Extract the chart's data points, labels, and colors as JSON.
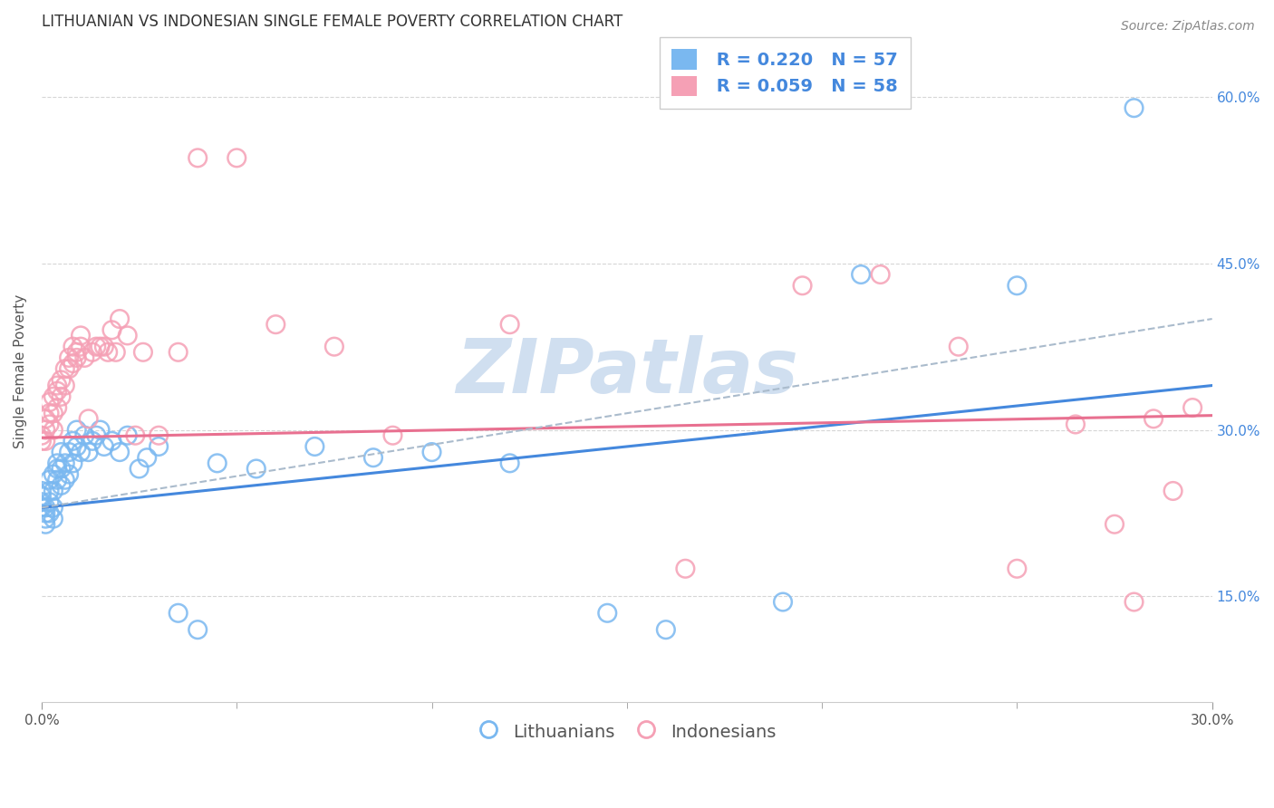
{
  "title": "LITHUANIAN VS INDONESIAN SINGLE FEMALE POVERTY CORRELATION CHART",
  "source": "Source: ZipAtlas.com",
  "ylabel": "Single Female Poverty",
  "yticks_labels": [
    "15.0%",
    "30.0%",
    "45.0%",
    "60.0%"
  ],
  "ytick_vals": [
    0.15,
    0.3,
    0.45,
    0.6
  ],
  "xlim": [
    0.0,
    0.3
  ],
  "ylim": [
    0.055,
    0.65
  ],
  "legend_blue_r": "R = 0.220",
  "legend_blue_n": "N = 57",
  "legend_pink_r": "R = 0.059",
  "legend_pink_n": "N = 58",
  "blue_color": "#7ab8f0",
  "pink_color": "#f5a0b5",
  "trend_blue_color": "#4488dd",
  "trend_pink_color": "#e87090",
  "trend_dashed_color": "#aabbcc",
  "watermark_color": "#d0dff0",
  "title_fontsize": 12,
  "source_fontsize": 10,
  "axis_label_fontsize": 11,
  "tick_fontsize": 11,
  "legend_fontsize": 14,
  "blue_scatter_x": [
    0.0,
    0.0,
    0.0,
    0.0,
    0.001,
    0.001,
    0.001,
    0.001,
    0.002,
    0.002,
    0.002,
    0.002,
    0.003,
    0.003,
    0.003,
    0.003,
    0.004,
    0.004,
    0.004,
    0.005,
    0.005,
    0.005,
    0.006,
    0.006,
    0.007,
    0.007,
    0.008,
    0.008,
    0.009,
    0.009,
    0.01,
    0.011,
    0.012,
    0.013,
    0.014,
    0.015,
    0.016,
    0.018,
    0.02,
    0.022,
    0.025,
    0.027,
    0.03,
    0.035,
    0.04,
    0.045,
    0.055,
    0.07,
    0.085,
    0.1,
    0.12,
    0.145,
    0.16,
    0.19,
    0.21,
    0.25,
    0.28
  ],
  "blue_scatter_y": [
    0.23,
    0.235,
    0.24,
    0.245,
    0.215,
    0.22,
    0.225,
    0.23,
    0.225,
    0.235,
    0.245,
    0.255,
    0.22,
    0.23,
    0.245,
    0.26,
    0.255,
    0.265,
    0.27,
    0.25,
    0.265,
    0.28,
    0.255,
    0.27,
    0.26,
    0.28,
    0.27,
    0.29,
    0.285,
    0.3,
    0.28,
    0.295,
    0.28,
    0.29,
    0.295,
    0.3,
    0.285,
    0.29,
    0.28,
    0.295,
    0.265,
    0.275,
    0.285,
    0.135,
    0.12,
    0.27,
    0.265,
    0.285,
    0.275,
    0.28,
    0.27,
    0.135,
    0.12,
    0.145,
    0.44,
    0.43,
    0.59
  ],
  "pink_scatter_x": [
    0.0,
    0.0,
    0.001,
    0.001,
    0.001,
    0.002,
    0.002,
    0.002,
    0.003,
    0.003,
    0.003,
    0.004,
    0.004,
    0.004,
    0.005,
    0.005,
    0.006,
    0.006,
    0.007,
    0.007,
    0.008,
    0.008,
    0.009,
    0.009,
    0.01,
    0.01,
    0.011,
    0.012,
    0.013,
    0.014,
    0.015,
    0.016,
    0.017,
    0.018,
    0.019,
    0.02,
    0.022,
    0.024,
    0.026,
    0.03,
    0.035,
    0.04,
    0.05,
    0.06,
    0.075,
    0.09,
    0.12,
    0.165,
    0.195,
    0.215,
    0.235,
    0.25,
    0.265,
    0.275,
    0.28,
    0.285,
    0.29,
    0.295
  ],
  "pink_scatter_y": [
    0.29,
    0.295,
    0.3,
    0.31,
    0.29,
    0.305,
    0.315,
    0.325,
    0.3,
    0.315,
    0.33,
    0.32,
    0.335,
    0.34,
    0.33,
    0.345,
    0.34,
    0.355,
    0.355,
    0.365,
    0.36,
    0.375,
    0.365,
    0.37,
    0.375,
    0.385,
    0.365,
    0.31,
    0.37,
    0.375,
    0.375,
    0.375,
    0.37,
    0.39,
    0.37,
    0.4,
    0.385,
    0.295,
    0.37,
    0.295,
    0.37,
    0.545,
    0.545,
    0.395,
    0.375,
    0.295,
    0.395,
    0.175,
    0.43,
    0.44,
    0.375,
    0.175,
    0.305,
    0.215,
    0.145,
    0.31,
    0.245,
    0.32
  ],
  "blue_trend_x": [
    0.0,
    0.3
  ],
  "blue_trend_y": [
    0.23,
    0.34
  ],
  "pink_trend_x": [
    0.0,
    0.3
  ],
  "pink_trend_y": [
    0.293,
    0.313
  ],
  "dashed_trend_x": [
    0.0,
    0.3
  ],
  "dashed_trend_y": [
    0.23,
    0.4
  ],
  "legend_labels": [
    "Lithuanians",
    "Indonesians"
  ],
  "bg_color": "#ffffff",
  "grid_color": "#cccccc"
}
